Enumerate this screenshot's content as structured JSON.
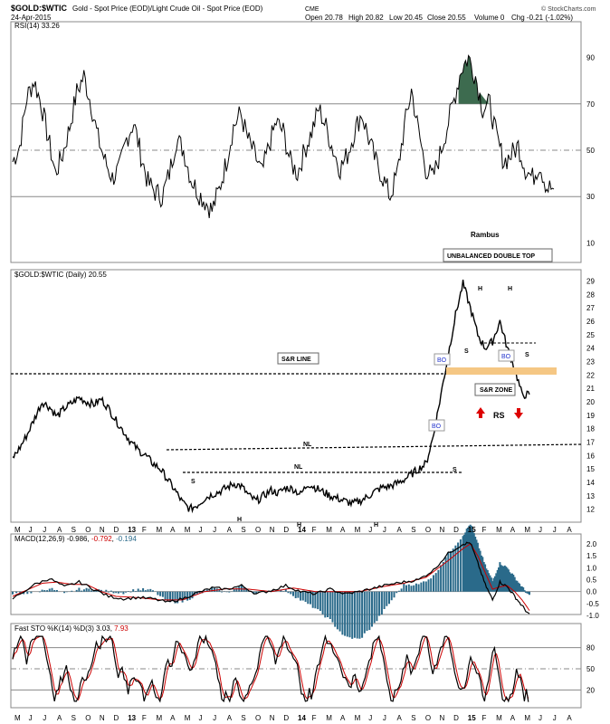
{
  "header": {
    "symbol": "$GOLD:$WTIC",
    "description": "Gold - Spot Price (EOD)/Light Crude Oil - Spot Price (EOD)",
    "exchange": "CME",
    "date": "24-Apr-2015",
    "quote": {
      "open": "Open 20.78",
      "high": "High 20.82",
      "low": "Low 20.45",
      "close": "Close 20.55",
      "volume": "Volume 0",
      "change": "Chg -0.21 (-1.02%)"
    },
    "watermark": "© StockCharts.com"
  },
  "colors": {
    "price": "#000000",
    "signal": "#cc0000",
    "histogram": "#2a6a8a",
    "rsi_fill": "#3d6b4f",
    "rsi_low_fill": "#b07060",
    "zone": "#f5c784",
    "annotation_red": "#dd0000",
    "bo_text": "#2233cc"
  },
  "time_axis": {
    "labels": [
      "M",
      "J",
      "J",
      "A",
      "S",
      "O",
      "N",
      "D",
      "13",
      "F",
      "M",
      "A",
      "M",
      "J",
      "J",
      "A",
      "S",
      "O",
      "N",
      "D",
      "14",
      "F",
      "M",
      "A",
      "M",
      "J",
      "J",
      "A",
      "S",
      "O",
      "N",
      "D",
      "15",
      "F",
      "M",
      "A",
      "M",
      "J",
      "J",
      "A"
    ]
  },
  "rsi_panel": {
    "title": "RSI(14) 33.26",
    "ticks": [
      "90",
      "70",
      "50",
      "30",
      "10"
    ],
    "annotations": {
      "author": "Rambus",
      "pattern": "UNBALANCED DOUBLE TOP"
    }
  },
  "price_panel": {
    "title": "$GOLD:$WTIC (Daily) 20.55",
    "ticks": [
      "29",
      "28",
      "27",
      "26",
      "25",
      "24",
      "23",
      "22",
      "21",
      "20",
      "19",
      "18",
      "17",
      "16",
      "15",
      "14",
      "13",
      "12"
    ],
    "annotations": {
      "sr_line": "S&R LINE",
      "sr_zone": "S&R ZONE",
      "bo1": "BO",
      "bo2": "BO",
      "bo3": "BO",
      "nl1": "NL",
      "nl2": "NL",
      "s_left": "S",
      "h1": "H",
      "h2": "H",
      "h3": "H",
      "s_right": "S",
      "s_top1": "S",
      "h_top1": "H",
      "h_top2": "H",
      "s_top2": "S",
      "rs": "RS"
    }
  },
  "macd_panel": {
    "title": "MACD(12,26,9)",
    "value1": "-0.986",
    "value2": "-0.792",
    "value3": "-0.194",
    "ticks": [
      "2.0",
      "1.5",
      "1.0",
      "0.5",
      "0.0",
      "-0.5",
      "-1.0"
    ]
  },
  "sto_panel": {
    "title": "Fast STO %K(14) %D(3)",
    "value1": "3.03",
    "value2": "7.93",
    "ticks": [
      "80",
      "50",
      "20"
    ]
  },
  "chart_data": [
    {
      "type": "line",
      "name": "RSI(14)",
      "ylim": [
        0,
        100
      ],
      "reference_lines": [
        70,
        50,
        30
      ],
      "anchors": [
        [
          0,
          45
        ],
        [
          1,
          52
        ],
        [
          2,
          73
        ],
        [
          3,
          80
        ],
        [
          4,
          70
        ],
        [
          5,
          55
        ],
        [
          6,
          40
        ],
        [
          7,
          48
        ],
        [
          8,
          60
        ],
        [
          9,
          75
        ],
        [
          10,
          82
        ],
        [
          11,
          70
        ],
        [
          12,
          55
        ],
        [
          13,
          45
        ],
        [
          14,
          38
        ],
        [
          15,
          42
        ],
        [
          16,
          55
        ],
        [
          17,
          62
        ],
        [
          18,
          48
        ],
        [
          19,
          36
        ],
        [
          20,
          32
        ],
        [
          21,
          30
        ],
        [
          22,
          40
        ],
        [
          23,
          55
        ],
        [
          24,
          50
        ],
        [
          25,
          38
        ],
        [
          26,
          32
        ],
        [
          27,
          28
        ],
        [
          28,
          24
        ],
        [
          29,
          33
        ],
        [
          30,
          45
        ],
        [
          31,
          60
        ],
        [
          32,
          66
        ],
        [
          33,
          55
        ],
        [
          34,
          48
        ],
        [
          35,
          40
        ],
        [
          36,
          52
        ],
        [
          37,
          62
        ],
        [
          38,
          58
        ],
        [
          39,
          45
        ],
        [
          40,
          40
        ],
        [
          41,
          50
        ],
        [
          42,
          58
        ],
        [
          43,
          68
        ],
        [
          44,
          60
        ],
        [
          45,
          50
        ],
        [
          46,
          42
        ],
        [
          47,
          48
        ],
        [
          48,
          58
        ],
        [
          49,
          66
        ],
        [
          50,
          55
        ],
        [
          51,
          45
        ],
        [
          52,
          38
        ],
        [
          53,
          30
        ],
        [
          54,
          40
        ],
        [
          55,
          60
        ],
        [
          56,
          76
        ],
        [
          57,
          58
        ],
        [
          58,
          42
        ],
        [
          59,
          38
        ],
        [
          60,
          48
        ],
        [
          61,
          60
        ],
        [
          62,
          72
        ],
        [
          63,
          85
        ],
        [
          64,
          90
        ],
        [
          65,
          82
        ],
        [
          66,
          68
        ],
        [
          67,
          70
        ],
        [
          68,
          55
        ],
        [
          69,
          45
        ],
        [
          70,
          48
        ],
        [
          71,
          52
        ],
        [
          72,
          42
        ],
        [
          73,
          38
        ],
        [
          74,
          44
        ],
        [
          75,
          34
        ],
        [
          76,
          33.26
        ]
      ]
    },
    {
      "type": "line",
      "name": "$GOLD:$WTIC (Daily)",
      "ylim": [
        11.5,
        29.3
      ],
      "last": 20.55,
      "anchors": [
        [
          0,
          15.8
        ],
        [
          1,
          16.6
        ],
        [
          2,
          17.6
        ],
        [
          3,
          18.8
        ],
        [
          4,
          20.0
        ],
        [
          5,
          19.6
        ],
        [
          6,
          18.9
        ],
        [
          7,
          19.5
        ],
        [
          8,
          19.9
        ],
        [
          9,
          20.3
        ],
        [
          10,
          20.0
        ],
        [
          11,
          19.8
        ],
        [
          12,
          20.2
        ],
        [
          13,
          19.5
        ],
        [
          14,
          18.6
        ],
        [
          15,
          17.8
        ],
        [
          16,
          17.0
        ],
        [
          17,
          16.4
        ],
        [
          18,
          16.0
        ],
        [
          19,
          15.4
        ],
        [
          20,
          15.0
        ],
        [
          21,
          14.2
        ],
        [
          22,
          13.4
        ],
        [
          23,
          12.5
        ],
        [
          24,
          12.0
        ],
        [
          25,
          12.3
        ],
        [
          26,
          12.8
        ],
        [
          27,
          13.1
        ],
        [
          28,
          13.3
        ],
        [
          29,
          13.6
        ],
        [
          30,
          13.9
        ],
        [
          31,
          13.7
        ],
        [
          32,
          13.0
        ],
        [
          33,
          12.6
        ],
        [
          34,
          13.0
        ],
        [
          35,
          13.4
        ],
        [
          36,
          13.2
        ],
        [
          37,
          13.6
        ],
        [
          38,
          13.5
        ],
        [
          39,
          13.1
        ],
        [
          40,
          13.9
        ],
        [
          41,
          13.6
        ],
        [
          42,
          13.3
        ],
        [
          43,
          13.0
        ],
        [
          44,
          12.8
        ],
        [
          45,
          12.6
        ],
        [
          46,
          12.4
        ],
        [
          47,
          12.6
        ],
        [
          48,
          12.9
        ],
        [
          49,
          13.3
        ],
        [
          50,
          13.6
        ],
        [
          51,
          13.7
        ],
        [
          52,
          13.9
        ],
        [
          53,
          14.2
        ],
        [
          54,
          14.6
        ],
        [
          55,
          15.0
        ],
        [
          56,
          15.4
        ],
        [
          57,
          17.5
        ],
        [
          58,
          20.5
        ],
        [
          59,
          23.5
        ],
        [
          60,
          26.5
        ],
        [
          61,
          28.8
        ],
        [
          62,
          27.0
        ],
        [
          63,
          25.0
        ],
        [
          64,
          24.0
        ],
        [
          65,
          24.5
        ],
        [
          66,
          26.0
        ],
        [
          67,
          24.0
        ],
        [
          68,
          22.5
        ],
        [
          69,
          20.5
        ],
        [
          70,
          20.55
        ]
      ]
    },
    {
      "type": "line",
      "name": "MACD(12,26,9)",
      "ylim": [
        -1.15,
        2.15
      ],
      "series": [
        {
          "name": "MACD",
          "anchors": [
            [
              0,
              -0.3
            ],
            [
              3,
              0.3
            ],
            [
              5,
              0.55
            ],
            [
              7,
              0.2
            ],
            [
              9,
              0.4
            ],
            [
              11,
              0.1
            ],
            [
              13,
              -0.2
            ],
            [
              15,
              -0.3
            ],
            [
              17,
              -0.25
            ],
            [
              19,
              -0.3
            ],
            [
              21,
              -0.45
            ],
            [
              23,
              -0.3
            ],
            [
              25,
              -0.05
            ],
            [
              27,
              0.15
            ],
            [
              29,
              0.1
            ],
            [
              31,
              0.25
            ],
            [
              33,
              -0.1
            ],
            [
              35,
              0.05
            ],
            [
              37,
              0.25
            ],
            [
              39,
              0.0
            ],
            [
              41,
              -0.1
            ],
            [
              43,
              0.1
            ],
            [
              45,
              -0.1
            ],
            [
              47,
              0.0
            ],
            [
              49,
              0.15
            ],
            [
              51,
              0.3
            ],
            [
              53,
              0.4
            ],
            [
              55,
              0.5
            ],
            [
              57,
              0.9
            ],
            [
              59,
              1.6
            ],
            [
              61,
              2.0
            ],
            [
              62,
              2.05
            ],
            [
              63,
              1.2
            ],
            [
              64,
              0.3
            ],
            [
              65,
              -0.35
            ],
            [
              66,
              0.4
            ],
            [
              67,
              0.2
            ],
            [
              68,
              -0.2
            ],
            [
              69,
              -0.6
            ],
            [
              70,
              -0.986
            ]
          ]
        },
        {
          "name": "Signal",
          "anchors": [
            [
              0,
              -0.2
            ],
            [
              4,
              0.35
            ],
            [
              6,
              0.4
            ],
            [
              8,
              0.3
            ],
            [
              10,
              0.3
            ],
            [
              12,
              0.0
            ],
            [
              14,
              -0.2
            ],
            [
              17,
              -0.25
            ],
            [
              20,
              -0.35
            ],
            [
              23,
              -0.35
            ],
            [
              26,
              0.0
            ],
            [
              29,
              0.12
            ],
            [
              32,
              0.1
            ],
            [
              35,
              0.0
            ],
            [
              38,
              0.15
            ],
            [
              41,
              0.0
            ],
            [
              44,
              0.0
            ],
            [
              47,
              0.0
            ],
            [
              50,
              0.2
            ],
            [
              53,
              0.35
            ],
            [
              56,
              0.6
            ],
            [
              59,
              1.3
            ],
            [
              61,
              1.8
            ],
            [
              62,
              2.0
            ],
            [
              63,
              1.5
            ],
            [
              64,
              0.8
            ],
            [
              65,
              0.1
            ],
            [
              66,
              0.2
            ],
            [
              67,
              0.25
            ],
            [
              68,
              0.0
            ],
            [
              69,
              -0.35
            ],
            [
              70,
              -0.792
            ]
          ]
        }
      ]
    },
    {
      "type": "line",
      "name": "Fast STO %K(14) %D(3)",
      "ylim": [
        0,
        100
      ],
      "reference_lines": [
        80,
        50,
        20
      ],
      "last": {
        "%K": 3.03,
        "%D": 7.93
      }
    }
  ]
}
